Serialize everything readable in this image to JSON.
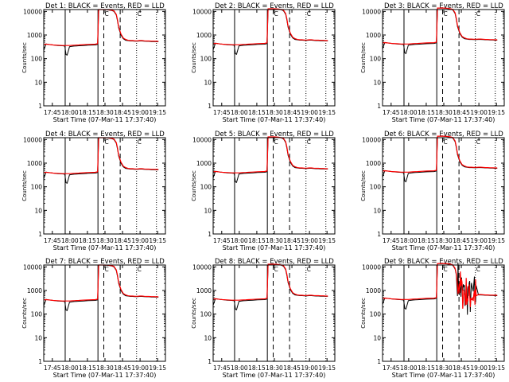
{
  "colors": {
    "events": "#000000",
    "lld": "#ff0000",
    "background": "#ffffff"
  },
  "chart_data": {
    "type": "line",
    "layout": "3x3 grid",
    "shared": {
      "xlabel": "Start Time (07-Mar-11 17:37:40)",
      "ylabel": "Counts/sec",
      "x_tick_labels": [
        "17:45",
        "18:00",
        "18:15",
        "18:30",
        "18:45",
        "19:00",
        "19:15"
      ],
      "x_range_minutes_after_17_37_40": [
        0,
        104
      ],
      "y_scale": "log",
      "ylim": [
        1,
        12000
      ],
      "y_tick_labels": [
        "1",
        "10",
        "100",
        "1000",
        "10000"
      ],
      "markers": [
        "C",
        "C"
      ],
      "vlines": [
        {
          "style": "solid",
          "time": "17:56"
        },
        {
          "style": "solid",
          "time": "18:24"
        },
        {
          "style": "dashed",
          "time": "18:29"
        },
        {
          "style": "dashed",
          "time": "18:43"
        },
        {
          "style": "dotted",
          "time": "18:57"
        },
        {
          "style": "dotted",
          "time": "19:14"
        }
      ]
    },
    "panels": [
      {
        "title": "Det 1: BLACK = Events, RED = LLD",
        "detector": 1,
        "noisy": false,
        "series": [
          {
            "name": "Events",
            "color": "#000000"
          },
          {
            "name": "LLD",
            "color": "#ff0000"
          }
        ]
      },
      {
        "title": "Det 2: BLACK = Events, RED = LLD",
        "detector": 2,
        "noisy": false,
        "series": [
          {
            "name": "Events",
            "color": "#000000"
          },
          {
            "name": "LLD",
            "color": "#ff0000"
          }
        ]
      },
      {
        "title": "Det 3: BLACK = Events, RED = LLD",
        "detector": 3,
        "noisy": false,
        "series": [
          {
            "name": "Events",
            "color": "#000000"
          },
          {
            "name": "LLD",
            "color": "#ff0000"
          }
        ]
      },
      {
        "title": "Det 4: BLACK = Events, RED = LLD",
        "detector": 4,
        "noisy": false,
        "series": [
          {
            "name": "Events",
            "color": "#000000"
          },
          {
            "name": "LLD",
            "color": "#ff0000"
          }
        ]
      },
      {
        "title": "Det 5: BLACK = Events, RED = LLD",
        "detector": 5,
        "noisy": false,
        "series": [
          {
            "name": "Events",
            "color": "#000000"
          },
          {
            "name": "LLD",
            "color": "#ff0000"
          }
        ]
      },
      {
        "title": "Det 6: BLACK = Events, RED = LLD",
        "detector": 6,
        "noisy": false,
        "series": [
          {
            "name": "Events",
            "color": "#000000"
          },
          {
            "name": "LLD",
            "color": "#ff0000"
          }
        ]
      },
      {
        "title": "Det 7: BLACK = Events, RED = LLD",
        "detector": 7,
        "noisy": false,
        "series": [
          {
            "name": "Events",
            "color": "#000000"
          },
          {
            "name": "LLD",
            "color": "#ff0000"
          }
        ]
      },
      {
        "title": "Det 8: BLACK = Events, RED = LLD",
        "detector": 8,
        "noisy": false,
        "series": [
          {
            "name": "Events",
            "color": "#000000"
          },
          {
            "name": "LLD",
            "color": "#ff0000"
          }
        ]
      },
      {
        "title": "Det 9: BLACK = Events, RED = LLD",
        "detector": 9,
        "noisy": true,
        "series": [
          {
            "name": "Events",
            "color": "#000000"
          },
          {
            "name": "LLD",
            "color": "#ff0000"
          }
        ]
      }
    ],
    "profile": {
      "x": [
        0,
        2,
        4,
        6,
        8,
        12,
        16,
        18,
        19,
        20,
        22,
        24,
        26,
        28,
        30,
        34,
        38,
        44,
        46,
        47,
        47.5,
        49,
        50,
        52,
        55,
        58,
        60,
        62,
        63,
        64,
        66,
        68,
        70,
        72,
        74,
        76,
        78,
        80,
        82,
        84,
        86,
        88,
        90,
        92,
        94,
        96,
        98
      ],
      "events": [
        220,
        420,
        400,
        390,
        380,
        360,
        350,
        340,
        150,
        140,
        320,
        330,
        340,
        345,
        350,
        360,
        370,
        380,
        400,
        12000,
        12000,
        12000,
        12000,
        12000,
        11500,
        11000,
        10000,
        7000,
        4000,
        2000,
        1000,
        700,
        600,
        580,
        560,
        560,
        550,
        550,
        560,
        560,
        550,
        540,
        540,
        530,
        530,
        520,
        520
      ],
      "lld": [
        400,
        410,
        400,
        390,
        380,
        370,
        360,
        360,
        360,
        360,
        360,
        365,
        370,
        375,
        380,
        390,
        400,
        410,
        430,
        12000,
        12000,
        12000,
        12000,
        12000,
        11800,
        11200,
        10500,
        7500,
        4500,
        2200,
        1100,
        750,
        650,
        600,
        580,
        580,
        570,
        570,
        580,
        580,
        570,
        560,
        560,
        550,
        550,
        540,
        540
      ]
    }
  }
}
